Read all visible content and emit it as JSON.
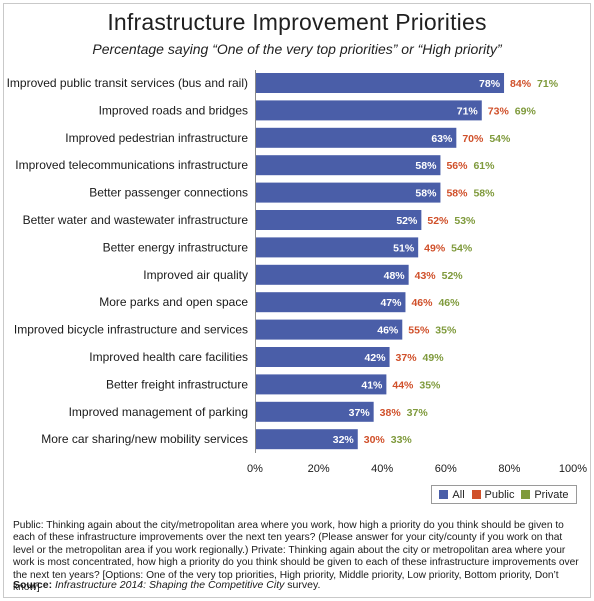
{
  "title": "Infrastructure Improvement Priorities",
  "subtitle": "Percentage saying “One of the very top priorities” or “High priority”",
  "legend": {
    "all": "All",
    "public": "Public",
    "private": "Private"
  },
  "colors": {
    "all": "#4a5ea8",
    "public": "#d0502a",
    "private": "#7f9a3c"
  },
  "footnote": "Public: Thinking again about the city/metropolitan area where you work, how high a priority do you think should be given to each of these infrastructure improvements over the next ten years? (Please answer for your city/county if you work on that level or the metropolitan area if you work regionally.) Private: Thinking again about the city or metropolitan area where your work is most concentrated, how high a priority do you think should be given to each of these infrastructure improvements over the next ten years? [Options: One of the very top priorities, High priority, Middle priority, Low priority, Bottom priority, Don’t know]",
  "source": {
    "label": "Source:",
    "title": "Infrastructure 2014: Shaping the Competitive City",
    "suffix": " survey."
  },
  "chart_data": {
    "type": "bar",
    "orientation": "horizontal",
    "title": "Infrastructure Improvement Priorities",
    "subtitle": "Percentage saying “One of the very top priorities” or “High priority”",
    "categories": [
      "Improved public transit services (bus and rail)",
      "Improved roads and bridges",
      "Improved pedestrian infrastructure",
      "Improved telecommunications infrastructure",
      "Better passenger connections",
      "Better water and wastewater infrastructure",
      "Better energy infrastructure",
      "Improved air quality",
      "More parks and open space",
      "Improved bicycle infrastructure and services",
      "Improved health care facilities",
      "Better freight infrastructure",
      "Improved management of parking",
      "More car sharing/new mobility services"
    ],
    "series": [
      {
        "name": "All",
        "values": [
          78,
          71,
          63,
          58,
          58,
          52,
          51,
          48,
          47,
          46,
          42,
          41,
          37,
          32
        ]
      },
      {
        "name": "Public",
        "values": [
          84,
          73,
          70,
          56,
          58,
          52,
          49,
          43,
          46,
          55,
          37,
          44,
          38,
          30
        ]
      },
      {
        "name": "Private",
        "values": [
          71,
          69,
          54,
          61,
          58,
          53,
          54,
          52,
          46,
          35,
          49,
          35,
          37,
          33
        ]
      }
    ],
    "xlim": [
      0,
      100
    ],
    "xticks": [
      "0%",
      "20%",
      "40%",
      "60%",
      "80%",
      "100%"
    ],
    "legend_position": "bottom-right",
    "grid": false
  }
}
